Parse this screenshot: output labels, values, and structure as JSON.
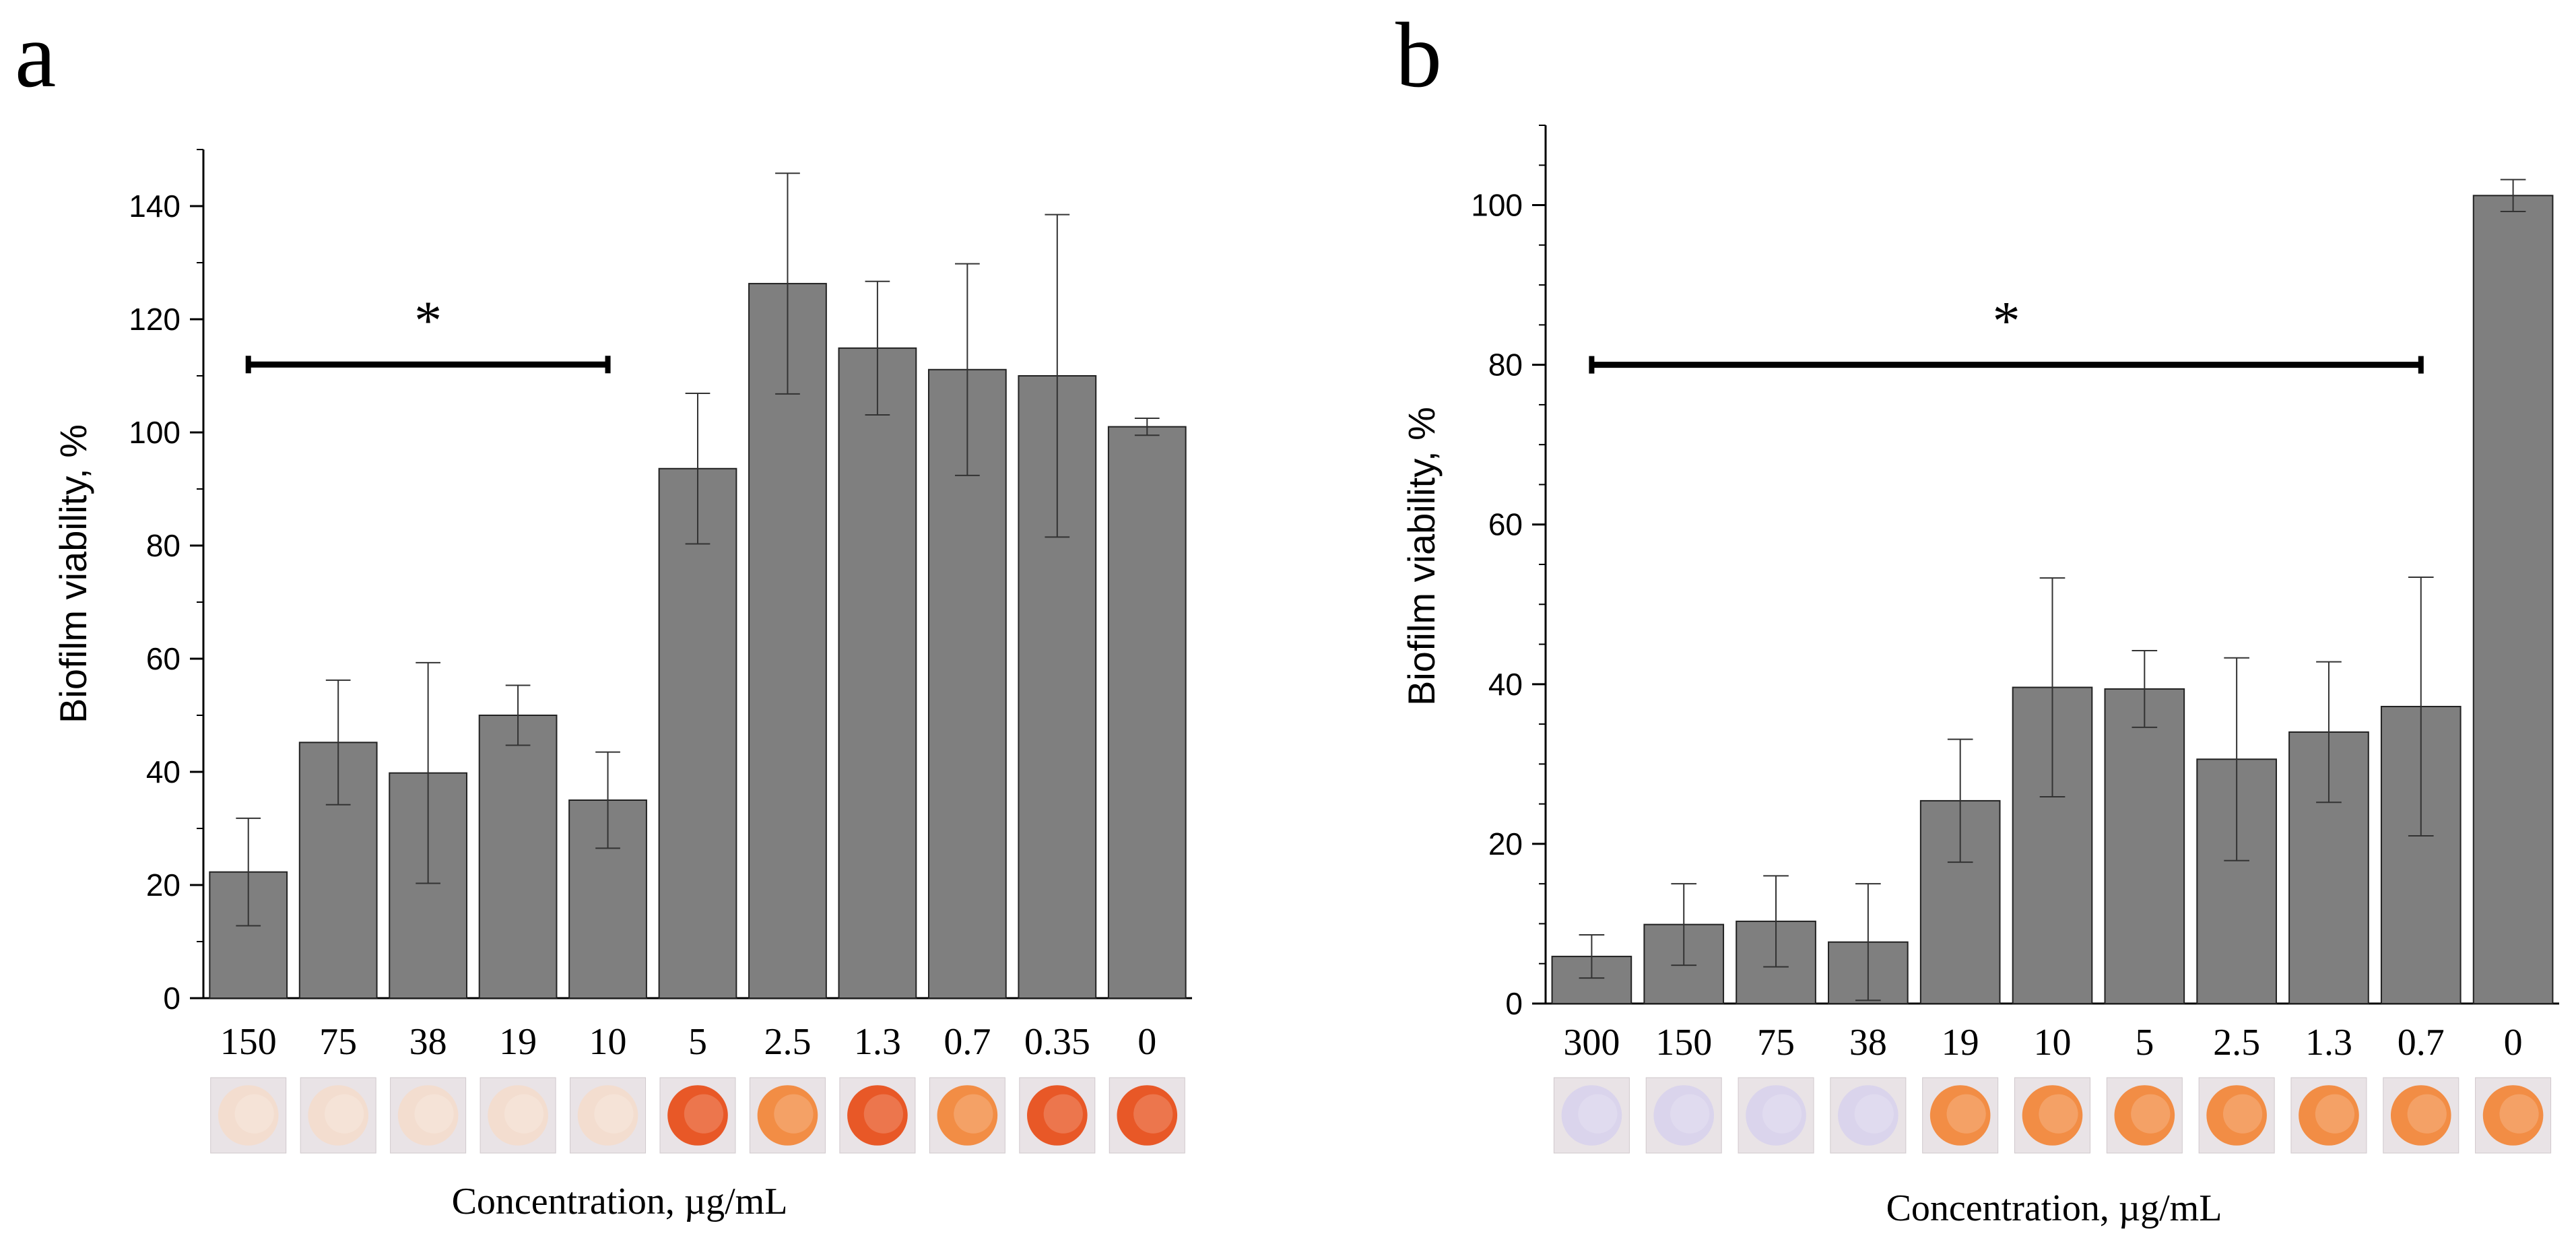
{
  "colors": {
    "bar_fill": "#7f7f7f",
    "bar_stroke": "#222222",
    "axis": "#000000",
    "text": "#000000",
    "well_white": "#f3dccd",
    "well_red": "#e8501c",
    "well_orange": "#f2883c",
    "well_lavender": "#d9d3ec"
  },
  "chart_data": [
    {
      "panel_label": "a",
      "type": "bar",
      "title": "",
      "xlabel": "Concentration, µg/mL",
      "ylabel": "Biofilm viability, %",
      "ylim": [
        0,
        150
      ],
      "yticks": [
        "0",
        "20",
        "40",
        "60",
        "80",
        "100",
        "120",
        "140"
      ],
      "categories": [
        "150",
        "75",
        "38",
        "19",
        "10",
        "5",
        "2.5",
        "1.3",
        "0.7",
        "0.35",
        "0"
      ],
      "values": [
        22.3,
        45.2,
        39.8,
        50.0,
        35.0,
        93.6,
        126.3,
        114.9,
        111.1,
        110.0,
        101.0
      ],
      "errors": [
        9.5,
        11.0,
        19.5,
        5.3,
        8.5,
        13.3,
        19.5,
        11.8,
        18.7,
        28.5,
        1.5
      ],
      "significance": {
        "label": "*",
        "from_category": "150",
        "to_category": "10",
        "y": 112
      },
      "well_colors": [
        "well_white",
        "well_white",
        "well_white",
        "well_white",
        "well_white",
        "well_red",
        "well_orange",
        "well_red",
        "well_orange",
        "well_red",
        "well_red"
      ]
    },
    {
      "panel_label": "b",
      "type": "bar",
      "title": "",
      "xlabel": "Concentration, µg/mL",
      "ylabel": "Biofilm viability, %",
      "ylim": [
        0,
        110
      ],
      "yticks": [
        "0",
        "20",
        "40",
        "60",
        "80",
        "100"
      ],
      "categories": [
        "300",
        "150",
        "75",
        "38",
        "19",
        "10",
        "5",
        "2.5",
        "1.3",
        "0.7",
        "0"
      ],
      "values": [
        5.9,
        9.9,
        10.3,
        7.7,
        25.4,
        39.6,
        39.4,
        30.6,
        34.0,
        37.2,
        101.2
      ],
      "errors": [
        2.7,
        5.1,
        5.7,
        7.3,
        7.7,
        13.7,
        4.8,
        12.7,
        8.8,
        16.2,
        2.0
      ],
      "significance": {
        "label": "*",
        "from_category": "300",
        "to_category": "0.7",
        "y": 80
      },
      "well_colors": [
        "well_lavender",
        "well_lavender",
        "well_lavender",
        "well_lavender",
        "well_orange",
        "well_orange",
        "well_orange",
        "well_orange",
        "well_orange",
        "well_orange",
        "well_orange"
      ]
    }
  ]
}
